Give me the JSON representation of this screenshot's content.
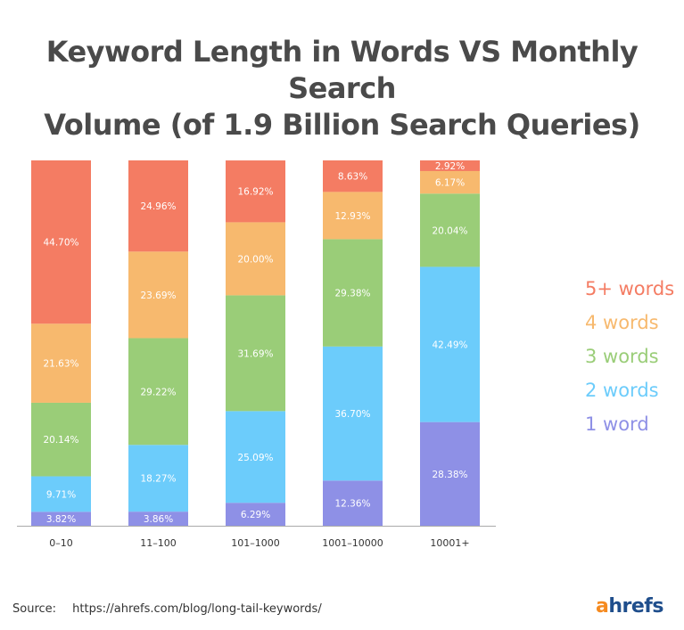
{
  "chart_data": {
    "type": "bar",
    "stacked": true,
    "normalized_percent": true,
    "title_lines": [
      "Keyword Length in Words VS Monthly Search",
      "Volume (of 1.9 Billion Search Queries)"
    ],
    "xlabel": "",
    "ylabel": "",
    "ylim": [
      0,
      100
    ],
    "grid": false,
    "legend_position": "right",
    "categories": [
      "0–10",
      "11–100",
      "101–1000",
      "1001–10000",
      "10001+"
    ],
    "series": [
      {
        "name": "1 word",
        "color": "#8e90e6",
        "values": [
          3.82,
          3.86,
          6.29,
          12.36,
          28.38
        ],
        "labels": [
          "3.82%",
          "3.86%",
          "6.29%",
          "12.36%",
          "28.38%"
        ]
      },
      {
        "name": "2 words",
        "color": "#6cccfb",
        "values": [
          9.71,
          18.27,
          25.09,
          36.7,
          42.49
        ],
        "labels": [
          "9.71%",
          "18.27%",
          "25.09%",
          "36.70%",
          "42.49%"
        ]
      },
      {
        "name": "3 words",
        "color": "#9acd78",
        "values": [
          20.14,
          29.22,
          31.69,
          29.38,
          20.04
        ],
        "labels": [
          "20.14%",
          "29.22%",
          "31.69%",
          "29.38%",
          "20.04%"
        ]
      },
      {
        "name": "4 words",
        "color": "#f7b96e",
        "values": [
          21.63,
          23.69,
          20.0,
          12.93,
          6.17
        ],
        "labels": [
          "21.63%",
          "23.69%",
          "20.00%",
          "12.93%",
          "6.17%"
        ]
      },
      {
        "name": "5+ words",
        "color": "#f47c63",
        "values": [
          44.7,
          24.96,
          16.92,
          8.63,
          2.92
        ],
        "labels": [
          "44.70%",
          "24.96%",
          "16.92%",
          "8.63%",
          "2.92%"
        ]
      }
    ],
    "legend_order": [
      "5+ words",
      "4 words",
      "3 words",
      "2 words",
      "1 word"
    ]
  },
  "footer": {
    "source_label": "Source:",
    "source_url": "https://ahrefs.com/blog/long-tail-keywords/",
    "logo_first": "a",
    "logo_rest": "hrefs"
  },
  "colors": {
    "title": "#4a4a4a",
    "axis": "#aaaaaa",
    "tick_text": "#333333",
    "logo_orange": "#f58a1f",
    "logo_blue": "#1f4e8c"
  }
}
